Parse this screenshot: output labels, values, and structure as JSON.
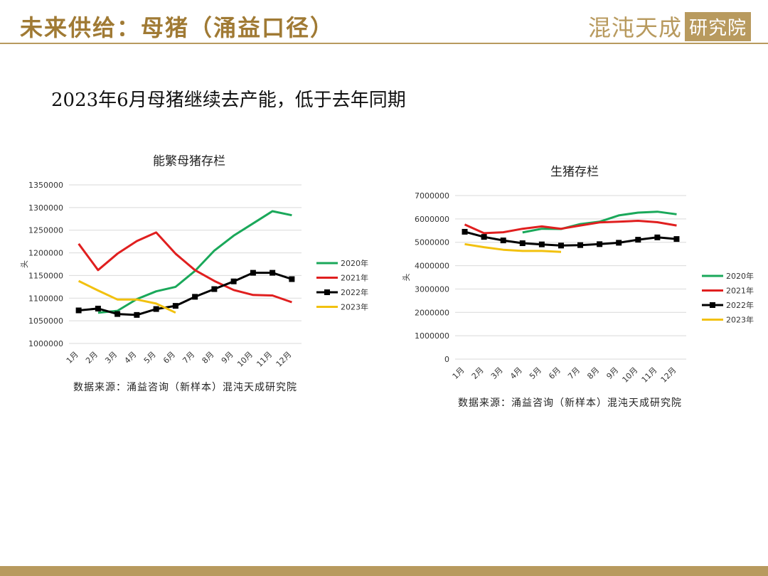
{
  "header": {
    "title": "未来供给：母猪（涌益口径）",
    "brand_main": "混沌天成",
    "brand_box": "研究院"
  },
  "subtitle": "2023年6月母猪继续去产能，低于去年同期",
  "colors": {
    "gold": "#b89a5e",
    "series": [
      "#1aa85a",
      "#e01f1f",
      "#000000",
      "#f2c10f"
    ]
  },
  "charts": [
    {
      "id": "left",
      "source": "数据来源：涌益咨询（新样本）混沌天成研究院",
      "chart_data": {
        "type": "line",
        "title": "能繁母猪存栏",
        "ylabel": "头",
        "xlabel": "",
        "categories": [
          "1月",
          "2月",
          "3月",
          "4月",
          "5月",
          "6月",
          "7月",
          "8月",
          "9月",
          "10月",
          "11月",
          "12月"
        ],
        "ylim": [
          1000000,
          1350000
        ],
        "yticks": [
          1000000,
          1050000,
          1100000,
          1150000,
          1200000,
          1250000,
          1300000,
          1350000
        ],
        "grid": true,
        "legend": "right",
        "series": [
          {
            "name": "2020年",
            "values": [
              null,
              1068000,
              1072000,
              1098000,
              1115000,
              1125000,
              1160000,
              1205000,
              1238000,
              1265000,
              1292000,
              1283000
            ]
          },
          {
            "name": "2021年",
            "values": [
              1220000,
              1162000,
              1198000,
              1226000,
              1245000,
              1198000,
              1162000,
              1138000,
              1118000,
              1107000,
              1106000,
              1091000
            ]
          },
          {
            "name": "2022年",
            "values": [
              1073000,
              1077000,
              1065000,
              1063000,
              1076000,
              1083000,
              1103000,
              1120000,
              1137000,
              1156000,
              1156000,
              1142000
            ]
          },
          {
            "name": "2023年",
            "values": [
              1138000,
              1117000,
              1097000,
              1097000,
              1088000,
              1068000,
              null,
              null,
              null,
              null,
              null,
              null
            ]
          }
        ]
      }
    },
    {
      "id": "right",
      "source": "数据来源：涌益咨询（新样本）混沌天成研究院",
      "chart_data": {
        "type": "line",
        "title": "生猪存栏",
        "ylabel": "头",
        "xlabel": "",
        "categories": [
          "1月",
          "2月",
          "3月",
          "4月",
          "5月",
          "6月",
          "7月",
          "8月",
          "9月",
          "10月",
          "11月",
          "12月"
        ],
        "ylim": [
          0,
          7000000
        ],
        "yticks": [
          0,
          1000000,
          2000000,
          3000000,
          4000000,
          5000000,
          6000000,
          7000000
        ],
        "grid": true,
        "legend": "right",
        "series": [
          {
            "name": "2020年",
            "values": [
              null,
              null,
              null,
              5420000,
              5580000,
              5570000,
              5780000,
              5880000,
              6150000,
              6270000,
              6310000,
              6200000
            ]
          },
          {
            "name": "2021年",
            "values": [
              5760000,
              5390000,
              5430000,
              5580000,
              5680000,
              5580000,
              5720000,
              5850000,
              5880000,
              5920000,
              5860000,
              5720000
            ]
          },
          {
            "name": "2022年",
            "values": [
              5450000,
              5230000,
              5080000,
              4960000,
              4910000,
              4860000,
              4880000,
              4920000,
              4980000,
              5110000,
              5210000,
              5140000
            ]
          },
          {
            "name": "2023年",
            "values": [
              4920000,
              4790000,
              4680000,
              4630000,
              4630000,
              4590000,
              null,
              null,
              null,
              null,
              null,
              null
            ]
          }
        ]
      }
    }
  ]
}
